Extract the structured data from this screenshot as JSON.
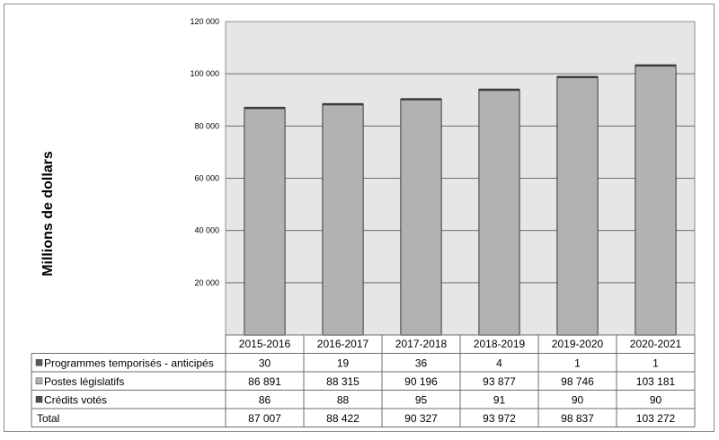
{
  "chart_data": {
    "type": "bar",
    "stacked": true,
    "ylabel": "Millions de dollars",
    "ylim": [
      0,
      120000
    ],
    "yticks": [
      {
        "value": 20000,
        "label": "20 000"
      },
      {
        "value": 40000,
        "label": "40 000"
      },
      {
        "value": 60000,
        "label": "60 000"
      },
      {
        "value": 80000,
        "label": "80 000"
      },
      {
        "value": 100000,
        "label": "100 000"
      },
      {
        "value": 120000,
        "label": "120 000"
      }
    ],
    "grid": true,
    "categories": [
      "2015-2016",
      "2016-2017",
      "2017-2018",
      "2018-2019",
      "2019-2020",
      "2020-2021"
    ],
    "series": [
      {
        "name": "Crédits votés",
        "color": "#4d4d4d",
        "values": [
          86,
          88,
          95,
          91,
          90,
          90
        ],
        "labels": [
          "86",
          "88",
          "95",
          "91",
          "90",
          "90"
        ]
      },
      {
        "name": "Postes législatifs",
        "color": "#b2b2b2",
        "values": [
          86891,
          88315,
          90196,
          93877,
          98746,
          103181
        ],
        "labels": [
          "86 891",
          "88 315",
          "90 196",
          "93 877",
          "98 746",
          "103 181"
        ]
      },
      {
        "name": "Programmes temporisés - anticipés",
        "color": "#595959",
        "values": [
          30,
          19,
          36,
          4,
          1,
          1
        ],
        "labels": [
          "30",
          "19",
          "36",
          "4",
          "1",
          "1"
        ]
      }
    ],
    "table_row_order": [
      "Programmes temporisés - anticipés",
      "Postes législatifs",
      "Crédits votés"
    ],
    "total": {
      "name": "Total",
      "labels": [
        "87 007",
        "88 422",
        "90 327",
        "93 972",
        "98 837",
        "103 272"
      ]
    }
  }
}
